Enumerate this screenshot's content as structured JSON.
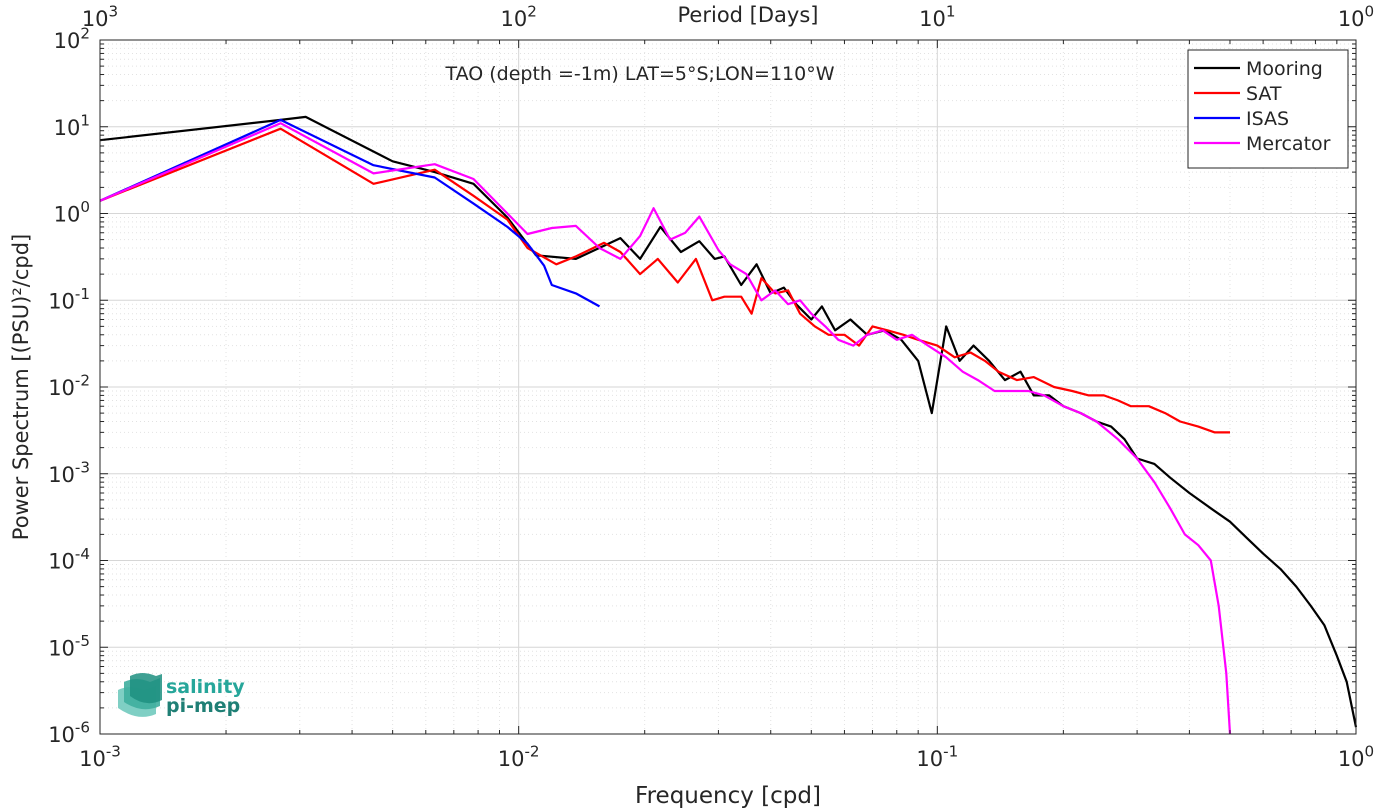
{
  "chart_data": {
    "type": "line",
    "title": "TAO (depth =-1m) LAT=5°S;LON=110°W",
    "xlabel": "Frequency [cpd]",
    "ylabel": "Power Spectrum [(PSU)²/cpd]",
    "top_xlabel": "Period [Days]",
    "x_scale": "log",
    "y_scale": "log",
    "xlim": [
      0.001,
      1
    ],
    "ylim": [
      1e-06,
      100
    ],
    "grid": true,
    "minor_grid": true,
    "legend_position": "top-right",
    "x_ticks": [
      {
        "value": 0.001,
        "base": "10",
        "exp": "-3"
      },
      {
        "value": 0.01,
        "base": "10",
        "exp": "-2"
      },
      {
        "value": 0.1,
        "base": "10",
        "exp": "-1"
      },
      {
        "value": 1,
        "base": "10",
        "exp": "0"
      }
    ],
    "top_ticks": [
      {
        "value": 0.001,
        "base": "10",
        "exp": "3"
      },
      {
        "value": 0.01,
        "base": "10",
        "exp": "2"
      },
      {
        "value": 0.1,
        "base": "10",
        "exp": "1"
      },
      {
        "value": 1,
        "base": "10",
        "exp": "0"
      }
    ],
    "y_ticks": [
      {
        "value": 100,
        "base": "10",
        "exp": "2"
      },
      {
        "value": 10,
        "base": "10",
        "exp": "1"
      },
      {
        "value": 1,
        "base": "10",
        "exp": "0"
      },
      {
        "value": 0.1,
        "base": "10",
        "exp": "-1"
      },
      {
        "value": 0.01,
        "base": "10",
        "exp": "-2"
      },
      {
        "value": 0.001,
        "base": "10",
        "exp": "-3"
      },
      {
        "value": 0.0001,
        "base": "10",
        "exp": "-4"
      },
      {
        "value": 1e-05,
        "base": "10",
        "exp": "-5"
      },
      {
        "value": 1e-06,
        "base": "10",
        "exp": "-6"
      }
    ],
    "series": [
      {
        "name": "Mooring",
        "color": "#000000",
        "points": [
          [
            0.001,
            7.0
          ],
          [
            0.0027,
            12.0
          ],
          [
            0.0031,
            13.0
          ],
          [
            0.005,
            4.0
          ],
          [
            0.0063,
            3.0
          ],
          [
            0.0078,
            2.2
          ],
          [
            0.0094,
            0.9
          ],
          [
            0.011,
            0.33
          ],
          [
            0.0137,
            0.3
          ],
          [
            0.0175,
            0.52
          ],
          [
            0.0195,
            0.3
          ],
          [
            0.0218,
            0.7
          ],
          [
            0.0244,
            0.36
          ],
          [
            0.027,
            0.48
          ],
          [
            0.0294,
            0.3
          ],
          [
            0.031,
            0.32
          ],
          [
            0.034,
            0.15
          ],
          [
            0.037,
            0.26
          ],
          [
            0.04,
            0.12
          ],
          [
            0.043,
            0.14
          ],
          [
            0.046,
            0.09
          ],
          [
            0.05,
            0.06
          ],
          [
            0.053,
            0.085
          ],
          [
            0.057,
            0.045
          ],
          [
            0.062,
            0.06
          ],
          [
            0.068,
            0.04
          ],
          [
            0.075,
            0.045
          ],
          [
            0.082,
            0.035
          ],
          [
            0.09,
            0.02
          ],
          [
            0.097,
            0.005
          ],
          [
            0.105,
            0.05
          ],
          [
            0.113,
            0.02
          ],
          [
            0.122,
            0.03
          ],
          [
            0.133,
            0.02
          ],
          [
            0.145,
            0.012
          ],
          [
            0.158,
            0.015
          ],
          [
            0.17,
            0.008
          ],
          [
            0.185,
            0.008
          ],
          [
            0.2,
            0.006
          ],
          [
            0.22,
            0.005
          ],
          [
            0.24,
            0.004
          ],
          [
            0.26,
            0.0035
          ],
          [
            0.28,
            0.0025
          ],
          [
            0.3,
            0.0015
          ],
          [
            0.33,
            0.0013
          ],
          [
            0.36,
            0.0009
          ],
          [
            0.4,
            0.0006
          ],
          [
            0.45,
            0.0004
          ],
          [
            0.5,
            0.00028
          ],
          [
            0.55,
            0.00018
          ],
          [
            0.6,
            0.00012
          ],
          [
            0.66,
            8e-05
          ],
          [
            0.72,
            5e-05
          ],
          [
            0.78,
            3e-05
          ],
          [
            0.84,
            1.8e-05
          ],
          [
            0.9,
            8e-06
          ],
          [
            0.95,
            4e-06
          ],
          [
            1.0,
            1.2e-06
          ]
        ]
      },
      {
        "name": "SAT",
        "color": "#ff0000",
        "points": [
          [
            0.001,
            1.4
          ],
          [
            0.0027,
            9.5
          ],
          [
            0.0045,
            2.2
          ],
          [
            0.0063,
            3.2
          ],
          [
            0.0078,
            1.6
          ],
          [
            0.0094,
            0.85
          ],
          [
            0.0105,
            0.4
          ],
          [
            0.0123,
            0.26
          ],
          [
            0.0137,
            0.32
          ],
          [
            0.016,
            0.46
          ],
          [
            0.0175,
            0.36
          ],
          [
            0.0195,
            0.2
          ],
          [
            0.0215,
            0.3
          ],
          [
            0.024,
            0.16
          ],
          [
            0.0265,
            0.3
          ],
          [
            0.029,
            0.1
          ],
          [
            0.031,
            0.11
          ],
          [
            0.034,
            0.11
          ],
          [
            0.036,
            0.07
          ],
          [
            0.038,
            0.18
          ],
          [
            0.041,
            0.12
          ],
          [
            0.044,
            0.13
          ],
          [
            0.047,
            0.07
          ],
          [
            0.051,
            0.05
          ],
          [
            0.055,
            0.04
          ],
          [
            0.06,
            0.04
          ],
          [
            0.065,
            0.03
          ],
          [
            0.07,
            0.05
          ],
          [
            0.076,
            0.045
          ],
          [
            0.083,
            0.04
          ],
          [
            0.09,
            0.035
          ],
          [
            0.1,
            0.03
          ],
          [
            0.11,
            0.022
          ],
          [
            0.12,
            0.025
          ],
          [
            0.13,
            0.02
          ],
          [
            0.14,
            0.015
          ],
          [
            0.155,
            0.012
          ],
          [
            0.17,
            0.013
          ],
          [
            0.19,
            0.01
          ],
          [
            0.21,
            0.009
          ],
          [
            0.23,
            0.008
          ],
          [
            0.25,
            0.008
          ],
          [
            0.27,
            0.007
          ],
          [
            0.29,
            0.006
          ],
          [
            0.32,
            0.006
          ],
          [
            0.35,
            0.005
          ],
          [
            0.38,
            0.004
          ],
          [
            0.42,
            0.0035
          ],
          [
            0.46,
            0.003
          ],
          [
            0.5,
            0.003
          ]
        ]
      },
      {
        "name": "ISAS",
        "color": "#0000ff",
        "points": [
          [
            0.001,
            1.4
          ],
          [
            0.0027,
            12.0
          ],
          [
            0.0045,
            3.6
          ],
          [
            0.0063,
            2.6
          ],
          [
            0.0078,
            1.3
          ],
          [
            0.0094,
            0.7
          ],
          [
            0.0105,
            0.45
          ],
          [
            0.0115,
            0.25
          ],
          [
            0.012,
            0.15
          ],
          [
            0.0137,
            0.12
          ],
          [
            0.0156,
            0.085
          ]
        ]
      },
      {
        "name": "Mercator",
        "color": "#ff00ff",
        "points": [
          [
            0.001,
            1.4
          ],
          [
            0.0027,
            11.0
          ],
          [
            0.0045,
            2.9
          ],
          [
            0.0063,
            3.7
          ],
          [
            0.0078,
            2.5
          ],
          [
            0.0094,
            1.0
          ],
          [
            0.0105,
            0.58
          ],
          [
            0.012,
            0.68
          ],
          [
            0.0137,
            0.72
          ],
          [
            0.0156,
            0.4
          ],
          [
            0.0175,
            0.3
          ],
          [
            0.0195,
            0.55
          ],
          [
            0.021,
            1.15
          ],
          [
            0.023,
            0.5
          ],
          [
            0.025,
            0.6
          ],
          [
            0.027,
            0.92
          ],
          [
            0.03,
            0.38
          ],
          [
            0.032,
            0.26
          ],
          [
            0.035,
            0.2
          ],
          [
            0.038,
            0.1
          ],
          [
            0.041,
            0.13
          ],
          [
            0.044,
            0.09
          ],
          [
            0.047,
            0.1
          ],
          [
            0.05,
            0.07
          ],
          [
            0.054,
            0.05
          ],
          [
            0.058,
            0.035
          ],
          [
            0.063,
            0.03
          ],
          [
            0.068,
            0.04
          ],
          [
            0.074,
            0.045
          ],
          [
            0.08,
            0.035
          ],
          [
            0.087,
            0.04
          ],
          [
            0.095,
            0.03
          ],
          [
            0.105,
            0.022
          ],
          [
            0.115,
            0.015
          ],
          [
            0.125,
            0.012
          ],
          [
            0.137,
            0.009
          ],
          [
            0.15,
            0.009
          ],
          [
            0.165,
            0.009
          ],
          [
            0.18,
            0.008
          ],
          [
            0.2,
            0.006
          ],
          [
            0.22,
            0.005
          ],
          [
            0.24,
            0.004
          ],
          [
            0.27,
            0.0025
          ],
          [
            0.3,
            0.0015
          ],
          [
            0.33,
            0.0008
          ],
          [
            0.36,
            0.0004
          ],
          [
            0.39,
            0.0002
          ],
          [
            0.42,
            0.00015
          ],
          [
            0.45,
            0.0001
          ],
          [
            0.47,
            3e-05
          ],
          [
            0.49,
            5e-06
          ],
          [
            0.5,
            1e-06
          ]
        ]
      }
    ]
  },
  "logo": {
    "line1": "salinity",
    "line2": "pi-mep",
    "color": "#26a69a"
  }
}
